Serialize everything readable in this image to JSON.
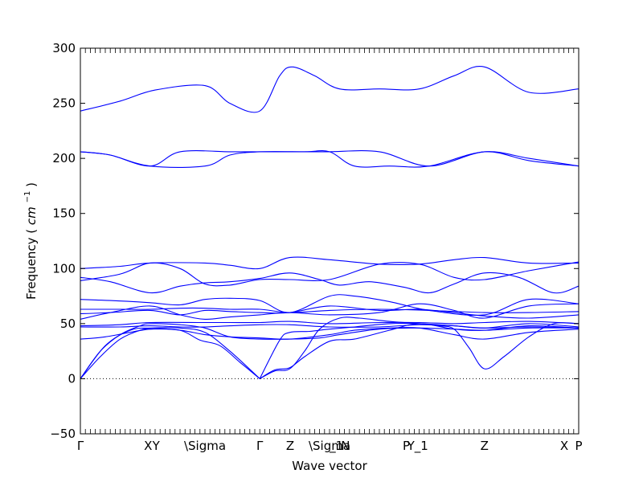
{
  "chart_data": {
    "type": "line",
    "title": "",
    "xlabel": "Wave vector",
    "ylabel": "Frequency",
    "ylabel_unit_base": "cm",
    "ylabel_unit_exp": "−1",
    "ylim": [
      -50,
      300
    ],
    "yticks": [
      -50,
      0,
      50,
      100,
      150,
      200,
      250,
      300
    ],
    "xlim": [
      0,
      1
    ],
    "grid": false,
    "legend": "none",
    "line_color": "#0000ff",
    "zero_line_color": "#000000",
    "high_symmetry_points": [
      {
        "label": "Γ",
        "x": 0.0
      },
      {
        "label": "X",
        "x": 0.136
      },
      {
        "label": "Y",
        "x": 0.152
      },
      {
        "label": "\\Sigma",
        "x": 0.25
      },
      {
        "label": "Γ",
        "x": 0.36
      },
      {
        "label": "Z",
        "x": 0.421
      },
      {
        "label": "\\Sigma",
        "x": 0.5
      },
      {
        "label": "_1",
        "x": 0.514
      },
      {
        "label": "N",
        "x": 0.532
      },
      {
        "label": "P",
        "x": 0.654
      },
      {
        "label": "Y_1",
        "x": 0.677
      },
      {
        "label": "Z",
        "x": 0.811
      },
      {
        "label": "X",
        "x": 0.971
      },
      {
        "label": "P",
        "x": 1.0
      }
    ],
    "series": [
      {
        "x": [
          0,
          0.08,
          0.15,
          0.25,
          0.3,
          0.36,
          0.4,
          0.425,
          0.47,
          0.52,
          0.6,
          0.68,
          0.75,
          0.811,
          0.9,
          1.0
        ],
        "values": [
          243,
          252,
          262,
          266,
          250,
          243,
          275,
          283,
          275,
          263,
          263,
          263,
          275,
          283,
          260,
          263
        ]
      },
      {
        "x": [
          0,
          0.06,
          0.14,
          0.2,
          0.3,
          0.36,
          0.45,
          0.5,
          0.55,
          0.62,
          0.7,
          0.811,
          0.9,
          1.0
        ],
        "values": [
          206,
          203,
          193,
          206,
          206,
          206,
          206,
          206,
          193,
          193,
          193,
          206,
          198,
          193
        ]
      },
      {
        "x": [
          0,
          0.06,
          0.14,
          0.25,
          0.3,
          0.36,
          0.45,
          0.5,
          0.6,
          0.7,
          0.811,
          0.9,
          1.0
        ],
        "values": [
          206,
          203,
          193,
          193,
          203,
          206,
          206,
          206,
          206,
          193,
          206,
          200,
          193
        ]
      },
      {
        "x": [
          0,
          0.08,
          0.14,
          0.25,
          0.3,
          0.36,
          0.42,
          0.5,
          0.6,
          0.68,
          0.75,
          0.811,
          0.9,
          1.0
        ],
        "values": [
          100,
          102,
          105,
          105,
          103,
          100,
          110,
          108,
          104,
          104,
          108,
          110,
          105,
          105
        ]
      },
      {
        "x": [
          0,
          0.08,
          0.14,
          0.2,
          0.25,
          0.3,
          0.36,
          0.42,
          0.5,
          0.6,
          0.68,
          0.75,
          0.811,
          0.9,
          1.0
        ],
        "values": [
          89,
          95,
          105,
          100,
          86,
          85,
          90,
          90,
          90,
          104,
          104,
          92,
          90,
          98,
          106
        ]
      },
      {
        "x": [
          0,
          0.06,
          0.14,
          0.2,
          0.25,
          0.3,
          0.36,
          0.42,
          0.48,
          0.52,
          0.58,
          0.65,
          0.7,
          0.75,
          0.811,
          0.88,
          0.95,
          1.0
        ],
        "values": [
          92,
          88,
          78,
          84,
          87,
          88,
          91,
          96,
          90,
          85,
          88,
          83,
          78,
          86,
          96,
          92,
          78,
          84
        ]
      },
      {
        "x": [
          0,
          0.06,
          0.14,
          0.2,
          0.25,
          0.3,
          0.36,
          0.42,
          0.5,
          0.55,
          0.62,
          0.7,
          0.811,
          0.9,
          1.0
        ],
        "values": [
          72,
          71,
          69,
          67,
          72,
          73,
          71,
          60,
          75,
          75,
          70,
          62,
          58,
          72,
          68
        ]
      },
      {
        "x": [
          0,
          0.08,
          0.14,
          0.2,
          0.25,
          0.3,
          0.36,
          0.42,
          0.5,
          0.6,
          0.7,
          0.811,
          0.9,
          1.0
        ],
        "values": [
          63,
          63,
          63,
          64,
          64,
          63,
          63,
          60,
          62,
          63,
          62,
          60,
          60,
          61
        ]
      },
      {
        "x": [
          0,
          0.06,
          0.14,
          0.2,
          0.25,
          0.3,
          0.36,
          0.42,
          0.5,
          0.6,
          0.68,
          0.75,
          0.811,
          0.9,
          1.0
        ],
        "values": [
          59,
          60,
          62,
          58,
          62,
          61,
          60,
          60,
          66,
          62,
          63,
          60,
          57,
          55,
          58
        ]
      },
      {
        "x": [
          0,
          0.06,
          0.14,
          0.2,
          0.25,
          0.3,
          0.36,
          0.42,
          0.5,
          0.6,
          0.68,
          0.75,
          0.811,
          0.9,
          1.0
        ],
        "values": [
          54,
          60,
          66,
          58,
          54,
          56,
          58,
          60,
          58,
          60,
          68,
          62,
          55,
          66,
          68
        ]
      },
      {
        "x": [
          0,
          0.08,
          0.14,
          0.25,
          0.3,
          0.36,
          0.42,
          0.5,
          0.6,
          0.68,
          0.75,
          0.811,
          0.9,
          1.0
        ],
        "values": [
          48,
          49,
          51,
          51,
          51,
          51,
          52,
          50,
          51,
          51,
          50,
          51,
          52,
          50
        ]
      },
      {
        "x": [
          0,
          0.08,
          0.14,
          0.2,
          0.25,
          0.3,
          0.36,
          0.42,
          0.5,
          0.6,
          0.68,
          0.75,
          0.811,
          0.9,
          1.0
        ],
        "values": [
          47,
          47,
          48,
          47,
          47,
          48,
          49,
          49,
          47,
          47,
          49,
          48,
          46,
          47,
          46
        ]
      },
      {
        "x": [
          0,
          0.05,
          0.14,
          0.2,
          0.25,
          0.3,
          0.36,
          0.42,
          0.5,
          0.55,
          0.62,
          0.68,
          0.75,
          0.811,
          0.9,
          1.0
        ],
        "values": [
          36,
          38,
          45,
          44,
          40,
          38,
          37,
          36,
          40,
          44,
          46,
          46,
          40,
          36,
          42,
          45
        ]
      },
      {
        "x": [
          0,
          0.04,
          0.08,
          0.12,
          0.14,
          0.2,
          0.25,
          0.3,
          0.36,
          0.42,
          0.48,
          0.52,
          0.6,
          0.68,
          0.75,
          0.811,
          0.9,
          1.0
        ],
        "values": [
          0,
          25,
          40,
          48,
          50,
          49,
          46,
          38,
          36,
          36,
          37,
          40,
          45,
          46,
          45,
          44,
          46,
          46
        ]
      },
      {
        "x": [
          0,
          0.04,
          0.08,
          0.12,
          0.14,
          0.2,
          0.24,
          0.28,
          0.32,
          0.36
        ],
        "values": [
          0,
          20,
          36,
          44,
          45,
          44,
          35,
          30,
          15,
          0
        ]
      },
      {
        "x": [
          0,
          0.05,
          0.1,
          0.14,
          0.2,
          0.25,
          0.3,
          0.36
        ],
        "values": [
          0,
          30,
          44,
          46,
          46,
          42,
          25,
          0
        ]
      },
      {
        "x": [
          0.36,
          0.39,
          0.42,
          0.45,
          0.48,
          0.52,
          0.56,
          0.62,
          0.68,
          0.72,
          0.75,
          0.78,
          0.811,
          0.85,
          0.9,
          0.95,
          1.0
        ],
        "values": [
          0,
          7,
          9,
          25,
          45,
          55,
          55,
          52,
          50,
          48,
          45,
          28,
          9,
          20,
          38,
          50,
          50
        ]
      },
      {
        "x": [
          0.36,
          0.39,
          0.42,
          0.45,
          0.5,
          0.55,
          0.62,
          0.68,
          0.75,
          0.811,
          0.9,
          1.0
        ],
        "values": [
          0,
          8,
          10,
          20,
          34,
          36,
          44,
          50,
          45,
          44,
          48,
          46
        ]
      },
      {
        "x": [
          0.36,
          0.4,
          0.42,
          0.46,
          0.5,
          0.55,
          0.62,
          0.68,
          0.75,
          0.811,
          0.9,
          1.0
        ],
        "values": [
          0,
          35,
          42,
          43,
          45,
          47,
          50,
          50,
          48,
          46,
          50,
          47
        ]
      }
    ]
  }
}
